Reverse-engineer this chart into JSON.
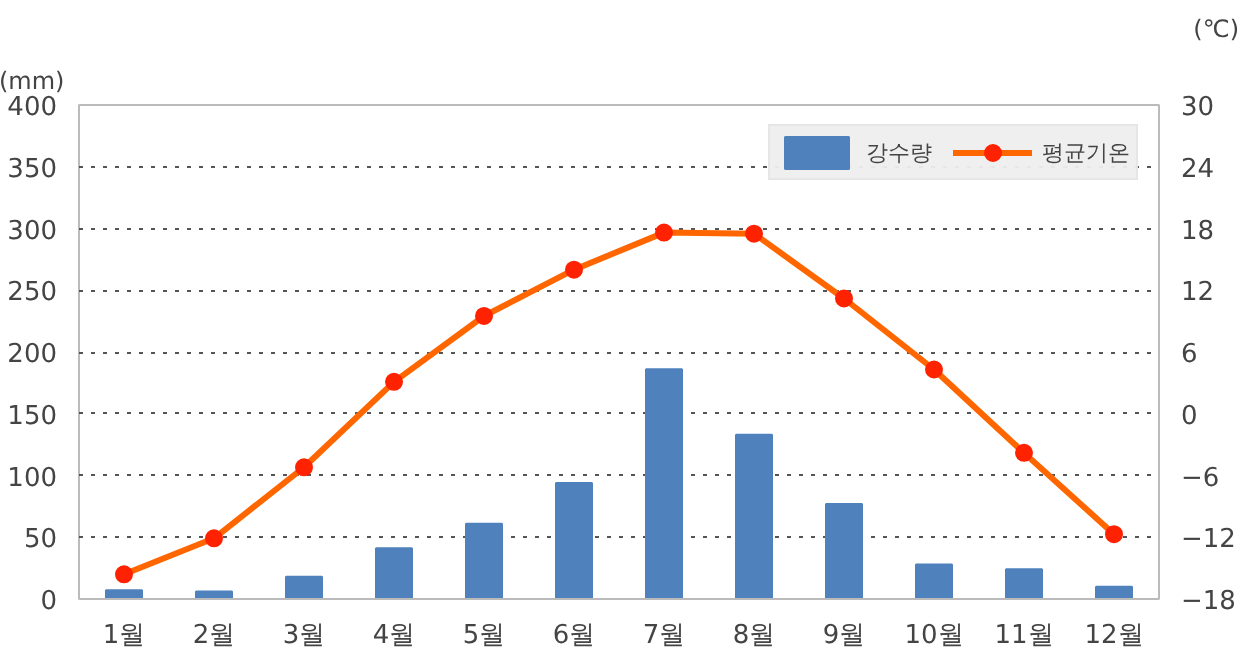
{
  "chart_data": {
    "type": "bar",
    "categories": [
      "1월",
      "2월",
      "3월",
      "4월",
      "5월",
      "6월",
      "7월",
      "8월",
      "9월",
      "10월",
      "11월",
      "12월"
    ],
    "series": [
      {
        "name": "강수량",
        "color": "#4f81bd",
        "values": [
          7,
          6,
          18,
          41,
          61,
          94,
          186,
          133,
          77,
          28,
          24,
          10
        ]
      },
      {
        "name": "평균기온",
        "type": "line",
        "axis": "y2",
        "color": "#ff6600",
        "marker": "circle",
        "values": [
          -15.6,
          -12.1,
          -5.2,
          3.1,
          9.5,
          14.0,
          17.6,
          17.5,
          11.2,
          4.3,
          -3.8,
          -11.7
        ]
      }
    ],
    "ylabel": "(mm)",
    "y2label": "(℃)",
    "ylim": [
      0,
      400
    ],
    "yticks": [
      0,
      50,
      100,
      150,
      200,
      250,
      300,
      350,
      400
    ],
    "y2lim": [
      -18,
      30
    ],
    "y2ticks": [
      -18,
      -12,
      -6,
      0,
      6,
      12,
      18,
      24,
      30
    ],
    "grid": "y",
    "legend": "top right"
  }
}
